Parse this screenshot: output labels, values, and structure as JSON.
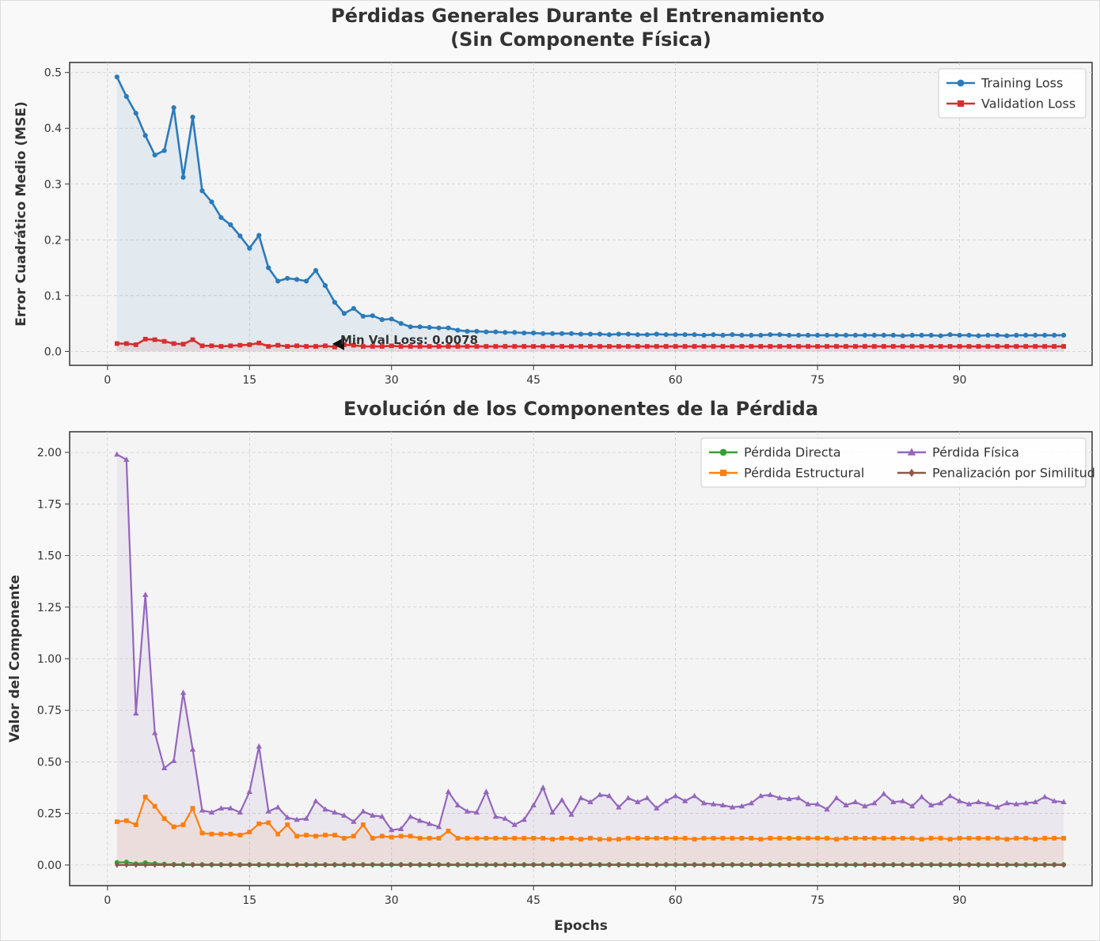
{
  "figure": {
    "xlabel": "Epochs"
  },
  "chart_data": [
    {
      "type": "line",
      "title_line1": "Pérdidas Generales Durante el Entrenamiento",
      "title_line2": "(Sin Componente Física)",
      "xlabel": "",
      "ylabel": "Error Cuadrático Medio (MSE)",
      "xlim": [
        -4,
        104
      ],
      "ylim": [
        -0.025,
        0.518
      ],
      "xticks": [
        "0",
        "15",
        "30",
        "45",
        "60",
        "75",
        "90"
      ],
      "yticks": [
        "0.0",
        "0.1",
        "0.2",
        "0.3",
        "0.4",
        "0.5"
      ],
      "grid": true,
      "legend": "top-right",
      "annotation": {
        "text": "Min Val Loss: 0.0078",
        "x": 24,
        "y": 0.0078
      },
      "series": [
        {
          "name": "Training Loss",
          "color": "#2b7bba",
          "marker": "circle",
          "values": [
            0.492,
            0.457,
            0.427,
            0.387,
            0.352,
            0.36,
            0.437,
            0.312,
            0.42,
            0.288,
            0.268,
            0.24,
            0.227,
            0.207,
            0.185,
            0.208,
            0.15,
            0.126,
            0.131,
            0.129,
            0.126,
            0.145,
            0.118,
            0.088,
            0.068,
            0.077,
            0.063,
            0.064,
            0.057,
            0.058,
            0.05,
            0.044,
            0.044,
            0.043,
            0.042,
            0.042,
            0.038,
            0.036,
            0.036,
            0.035,
            0.035,
            0.034,
            0.034,
            0.033,
            0.033,
            0.032,
            0.032,
            0.032,
            0.032,
            0.031,
            0.031,
            0.031,
            0.03,
            0.031,
            0.031,
            0.03,
            0.03,
            0.031,
            0.03,
            0.03,
            0.03,
            0.03,
            0.029,
            0.03,
            0.029,
            0.03,
            0.029,
            0.029,
            0.029,
            0.03,
            0.03,
            0.029,
            0.029,
            0.029,
            0.029,
            0.029,
            0.029,
            0.029,
            0.029,
            0.029,
            0.029,
            0.029,
            0.029,
            0.028,
            0.029,
            0.029,
            0.029,
            0.028,
            0.03,
            0.029,
            0.029,
            0.028,
            0.029,
            0.029,
            0.028,
            0.029,
            0.029,
            0.029,
            0.029,
            0.029,
            0.029
          ]
        },
        {
          "name": "Validation Loss",
          "color": "#d62f2f",
          "marker": "square",
          "values": [
            0.014,
            0.014,
            0.012,
            0.022,
            0.021,
            0.018,
            0.014,
            0.013,
            0.021,
            0.01,
            0.01,
            0.009,
            0.01,
            0.011,
            0.012,
            0.015,
            0.009,
            0.011,
            0.009,
            0.01,
            0.009,
            0.009,
            0.01,
            0.0078,
            0.012,
            0.011,
            0.009,
            0.009,
            0.009,
            0.01,
            0.009,
            0.009,
            0.009,
            0.009,
            0.009,
            0.009,
            0.009,
            0.009,
            0.009,
            0.009,
            0.009,
            0.009,
            0.009,
            0.009,
            0.009,
            0.009,
            0.009,
            0.009,
            0.009,
            0.009,
            0.009,
            0.009,
            0.009,
            0.009,
            0.009,
            0.009,
            0.009,
            0.009,
            0.009,
            0.009,
            0.009,
            0.009,
            0.009,
            0.009,
            0.009,
            0.009,
            0.009,
            0.009,
            0.009,
            0.009,
            0.009,
            0.009,
            0.009,
            0.009,
            0.009,
            0.009,
            0.009,
            0.009,
            0.009,
            0.009,
            0.009,
            0.009,
            0.009,
            0.009,
            0.009,
            0.009,
            0.009,
            0.009,
            0.009,
            0.009,
            0.009,
            0.009,
            0.009,
            0.009,
            0.009,
            0.009,
            0.009,
            0.009,
            0.009,
            0.009,
            0.009
          ]
        }
      ]
    },
    {
      "type": "line",
      "title": "Evolución de los Componentes de la Pérdida",
      "xlabel": "Epochs",
      "ylabel": "Valor del Componente",
      "xlim": [
        -4,
        104
      ],
      "ylim": [
        -0.1,
        2.1
      ],
      "xticks": [
        "0",
        "15",
        "30",
        "45",
        "60",
        "75",
        "90"
      ],
      "yticks": [
        "0.00",
        "0.25",
        "0.50",
        "0.75",
        "1.00",
        "1.25",
        "1.50",
        "1.75",
        "2.00"
      ],
      "grid": true,
      "legend": "top-right",
      "series": [
        {
          "name": "Pérdida Directa",
          "color": "#35a035",
          "marker": "circle",
          "values": [
            0.012,
            0.014,
            0.006,
            0.011,
            0.007,
            0.004,
            0.003,
            0.003,
            0.002,
            0.002,
            0.002,
            0.002,
            0.002,
            0.002,
            0.002,
            0.002,
            0.002,
            0.002,
            0.002,
            0.002,
            0.002,
            0.002,
            0.002,
            0.002,
            0.002,
            0.002,
            0.002,
            0.002,
            0.002,
            0.002,
            0.002,
            0.002,
            0.002,
            0.002,
            0.002,
            0.002,
            0.002,
            0.002,
            0.002,
            0.002,
            0.002,
            0.002,
            0.002,
            0.002,
            0.002,
            0.002,
            0.002,
            0.002,
            0.002,
            0.002,
            0.002,
            0.002,
            0.002,
            0.002,
            0.002,
            0.002,
            0.002,
            0.002,
            0.002,
            0.002,
            0.002,
            0.002,
            0.002,
            0.002,
            0.002,
            0.002,
            0.002,
            0.002,
            0.002,
            0.002,
            0.002,
            0.002,
            0.002,
            0.002,
            0.002,
            0.002,
            0.002,
            0.002,
            0.002,
            0.002,
            0.002,
            0.002,
            0.002,
            0.002,
            0.002,
            0.002,
            0.002,
            0.002,
            0.002,
            0.002,
            0.002,
            0.002,
            0.002,
            0.002,
            0.002,
            0.002,
            0.002,
            0.002,
            0.002,
            0.002,
            0.002
          ]
        },
        {
          "name": "Pérdida Estructural",
          "color": "#ff7f0e",
          "marker": "square",
          "values": [
            0.21,
            0.215,
            0.195,
            0.33,
            0.285,
            0.225,
            0.185,
            0.195,
            0.275,
            0.155,
            0.15,
            0.15,
            0.15,
            0.145,
            0.16,
            0.2,
            0.205,
            0.15,
            0.195,
            0.14,
            0.145,
            0.14,
            0.145,
            0.145,
            0.13,
            0.14,
            0.195,
            0.13,
            0.14,
            0.135,
            0.14,
            0.14,
            0.13,
            0.13,
            0.13,
            0.165,
            0.13,
            0.13,
            0.13,
            0.13,
            0.13,
            0.13,
            0.13,
            0.13,
            0.13,
            0.13,
            0.125,
            0.13,
            0.13,
            0.125,
            0.13,
            0.125,
            0.125,
            0.125,
            0.13,
            0.13,
            0.13,
            0.13,
            0.13,
            0.13,
            0.13,
            0.125,
            0.13,
            0.13,
            0.13,
            0.13,
            0.13,
            0.13,
            0.125,
            0.13,
            0.13,
            0.13,
            0.13,
            0.13,
            0.13,
            0.13,
            0.125,
            0.13,
            0.13,
            0.13,
            0.13,
            0.13,
            0.13,
            0.13,
            0.13,
            0.125,
            0.13,
            0.13,
            0.125,
            0.13,
            0.13,
            0.13,
            0.13,
            0.13,
            0.125,
            0.13,
            0.13,
            0.125,
            0.13,
            0.13,
            0.13
          ]
        },
        {
          "name": "Pérdida Física",
          "color": "#9467bd",
          "marker": "triangle",
          "values": [
            1.99,
            1.965,
            0.735,
            1.31,
            0.64,
            0.47,
            0.505,
            0.835,
            0.56,
            0.265,
            0.255,
            0.275,
            0.275,
            0.255,
            0.355,
            0.575,
            0.26,
            0.28,
            0.23,
            0.22,
            0.225,
            0.31,
            0.27,
            0.255,
            0.24,
            0.21,
            0.26,
            0.24,
            0.235,
            0.17,
            0.175,
            0.235,
            0.215,
            0.2,
            0.185,
            0.355,
            0.29,
            0.26,
            0.255,
            0.355,
            0.235,
            0.225,
            0.195,
            0.22,
            0.29,
            0.375,
            0.255,
            0.315,
            0.245,
            0.325,
            0.305,
            0.34,
            0.335,
            0.28,
            0.325,
            0.305,
            0.325,
            0.275,
            0.31,
            0.335,
            0.31,
            0.335,
            0.3,
            0.295,
            0.29,
            0.28,
            0.285,
            0.3,
            0.335,
            0.34,
            0.325,
            0.32,
            0.325,
            0.295,
            0.295,
            0.27,
            0.325,
            0.29,
            0.305,
            0.285,
            0.3,
            0.345,
            0.305,
            0.31,
            0.285,
            0.33,
            0.29,
            0.3,
            0.335,
            0.31,
            0.295,
            0.305,
            0.295,
            0.28,
            0.3,
            0.295,
            0.3,
            0.305,
            0.33,
            0.31,
            0.305
          ]
        },
        {
          "name": "Penalización por Similitud",
          "color": "#8c564b",
          "marker": "diamond",
          "values": [
            0.0,
            0.0,
            0.0,
            0.0,
            0.0,
            0.0,
            0.0,
            0.0,
            0.0,
            0.0,
            0.0,
            0.0,
            0.0,
            0.0,
            0.0,
            0.0,
            0.0,
            0.0,
            0.0,
            0.0,
            0.0,
            0.0,
            0.0,
            0.0,
            0.0,
            0.0,
            0.0,
            0.0,
            0.0,
            0.0,
            0.0,
            0.0,
            0.0,
            0.0,
            0.0,
            0.0,
            0.0,
            0.0,
            0.0,
            0.0,
            0.0,
            0.0,
            0.0,
            0.0,
            0.0,
            0.0,
            0.0,
            0.0,
            0.0,
            0.0,
            0.0,
            0.0,
            0.0,
            0.0,
            0.0,
            0.0,
            0.0,
            0.0,
            0.0,
            0.0,
            0.0,
            0.0,
            0.0,
            0.0,
            0.0,
            0.0,
            0.0,
            0.0,
            0.0,
            0.0,
            0.0,
            0.0,
            0.0,
            0.0,
            0.0,
            0.0,
            0.0,
            0.0,
            0.0,
            0.0,
            0.0,
            0.0,
            0.0,
            0.0,
            0.0,
            0.0,
            0.0,
            0.0,
            0.0,
            0.0,
            0.0,
            0.0,
            0.0,
            0.0,
            0.0,
            0.0,
            0.0,
            0.0,
            0.0,
            0.0,
            0.0
          ]
        }
      ]
    }
  ]
}
